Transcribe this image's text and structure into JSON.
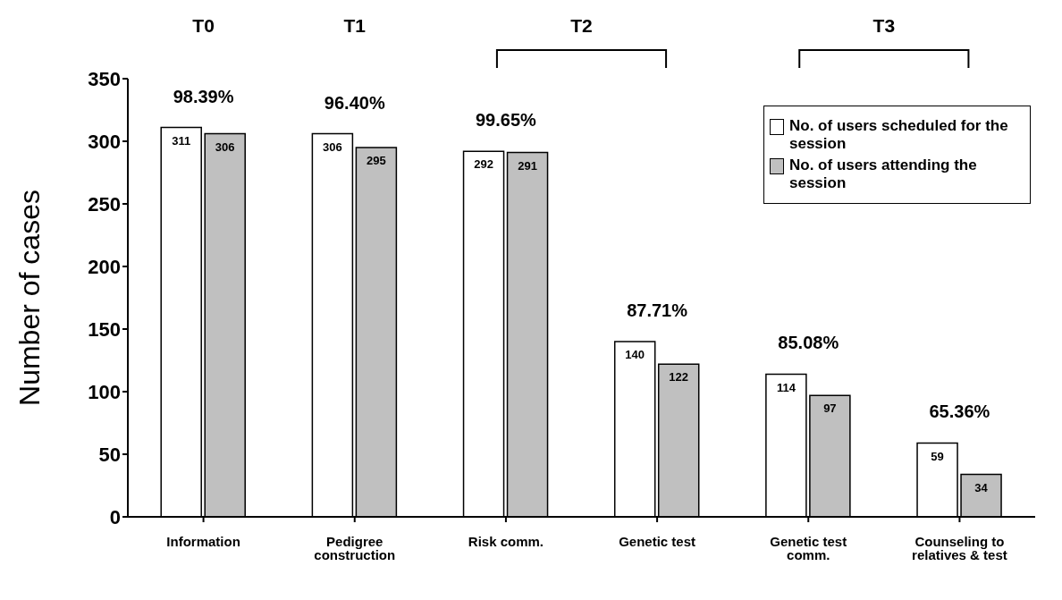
{
  "chart_data": {
    "type": "bar",
    "ylabel": "Number of cases",
    "categories": [
      "Information",
      "Pedigree construction",
      "Risk comm.",
      "Genetic test",
      "Genetic test comm.",
      "Counseling to relatives & test"
    ],
    "series": [
      {
        "name": "No. of users scheduled for the session",
        "color": "#ffffff",
        "values": [
          311,
          306,
          292,
          140,
          114,
          59
        ]
      },
      {
        "name": "No. of users attending the session",
        "color": "#c0c0c0",
        "values": [
          306,
          295,
          291,
          122,
          97,
          34
        ]
      }
    ],
    "data_labels": true,
    "ylim": [
      0,
      350
    ],
    "yticks": [
      0,
      50,
      100,
      150,
      200,
      250,
      300,
      350
    ],
    "grid": false,
    "legend": "top right",
    "annotations": [
      "T0",
      "T1",
      "T2",
      "T3",
      "98.39%",
      "96.40%",
      "99.65%",
      "87.71%",
      "85.08%",
      "65.36%"
    ]
  }
}
